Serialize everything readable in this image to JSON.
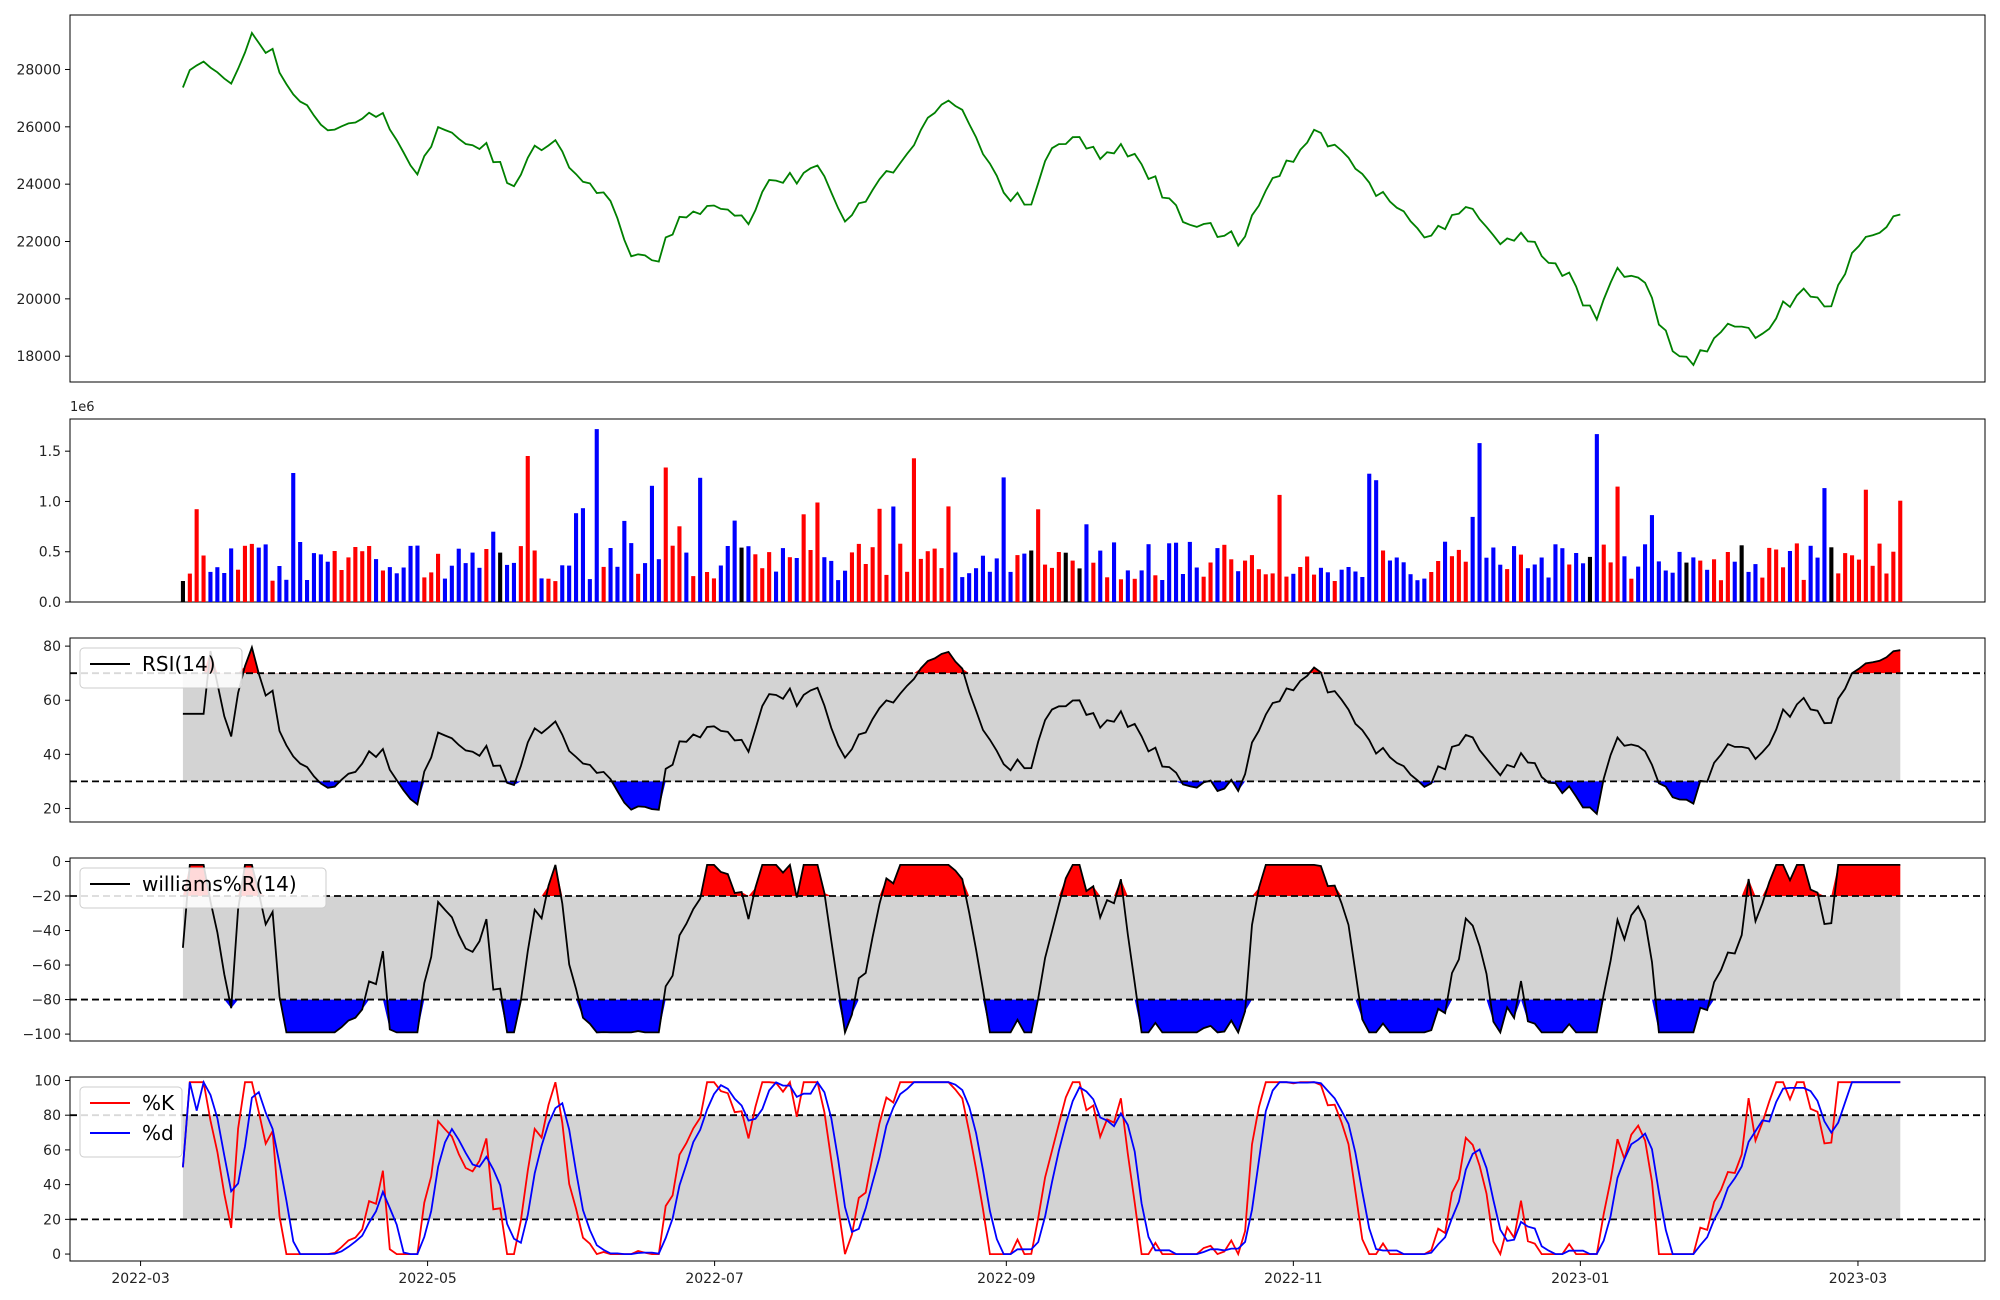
{
  "colors": {
    "price": "#008000",
    "volume_up": "#ff0000",
    "volume_down": "#0000ff",
    "volume_flat": "#000000",
    "band_fill": "#d3d3d3",
    "overbought_fill": "#ff0000",
    "oversold_fill": "#0000ff",
    "indicator_line": "#000000",
    "k_line": "#ff0000",
    "d_line": "#0000ff",
    "threshold_line": "#000000"
  },
  "chart_data": [
    {
      "id": "price",
      "type": "line",
      "series": [
        {
          "values_anchor_x": [
            0,
            5,
            10,
            15,
            20,
            25,
            30,
            35,
            40,
            45,
            50,
            55,
            60,
            65,
            70,
            75,
            80,
            85,
            90,
            95,
            100,
            105,
            110,
            115,
            120,
            125,
            130,
            135,
            140,
            145,
            150,
            155,
            160,
            165,
            170,
            175,
            180,
            185,
            190,
            195,
            200,
            205,
            210,
            215,
            220,
            225,
            230,
            235,
            240,
            245,
            250,
            255,
            260,
            265,
            270,
            275,
            280,
            285,
            290,
            295,
            300,
            305,
            310,
            315,
            320,
            325,
            330,
            335,
            340,
            345,
            350,
            355,
            360,
            365
          ],
          "values": [
            27600,
            28300,
            27600,
            29300,
            28300,
            26700,
            26100,
            25900,
            26600,
            25900,
            24400,
            26000,
            25300,
            25200,
            24000,
            25300,
            25400,
            24000,
            23500,
            21700,
            21200,
            22700,
            23100,
            23200,
            22800,
            24100,
            24200,
            24500,
            22800,
            23600,
            24400,
            25000,
            26800,
            26800,
            25300,
            23700,
            23300,
            25400,
            25600,
            25000,
            25300,
            24400,
            23300,
            22500,
            22400,
            22000,
            23900,
            24800,
            25900,
            25300,
            24400,
            23600,
            23000,
            22100,
            22800,
            23100,
            22000,
            22300,
            21300,
            20700,
            19300,
            20900,
            20900,
            18700,
            17700,
            18600,
            19100,
            18700,
            19800,
            20300,
            19500,
            21800,
            22300,
            22800
          ]
        }
      ],
      "ylim": [
        17100,
        29900
      ],
      "yticks": [
        "18000",
        "20000",
        "22000",
        "24000",
        "26000",
        "28000"
      ]
    },
    {
      "id": "volume",
      "type": "bar",
      "offset_label": "1e6",
      "ylim": [
        0,
        1.82
      ],
      "yticks": [
        "0.0",
        "0.5",
        "1.0",
        "1.5"
      ]
    },
    {
      "id": "rsi",
      "type": "line",
      "legend": [
        "RSI(14)"
      ],
      "bands": [
        30,
        70
      ],
      "ylim": [
        15,
        83
      ],
      "yticks": [
        "20",
        "40",
        "60",
        "80"
      ]
    },
    {
      "id": "williams",
      "type": "line",
      "legend": [
        "williams%R(14)"
      ],
      "bands": [
        -80,
        -20
      ],
      "ylim": [
        -104,
        2
      ],
      "yticks": [
        "0",
        "−20",
        "−40",
        "−60",
        "−80",
        "−100"
      ]
    },
    {
      "id": "stoch",
      "type": "line",
      "legend": [
        "%K",
        "%d"
      ],
      "bands": [
        20,
        80
      ],
      "ylim": [
        -4,
        102
      ],
      "yticks": [
        "0",
        "20",
        "40",
        "60",
        "80",
        "100"
      ]
    }
  ],
  "xaxis": {
    "range": [
      "2022-02-14",
      "2023-03-28"
    ],
    "data_start": "2022-03-10",
    "data_end": "2023-03-10",
    "ticks": [
      "2022-03",
      "2022-05",
      "2022-07",
      "2022-09",
      "2022-11",
      "2023-01",
      "2023-03"
    ]
  }
}
